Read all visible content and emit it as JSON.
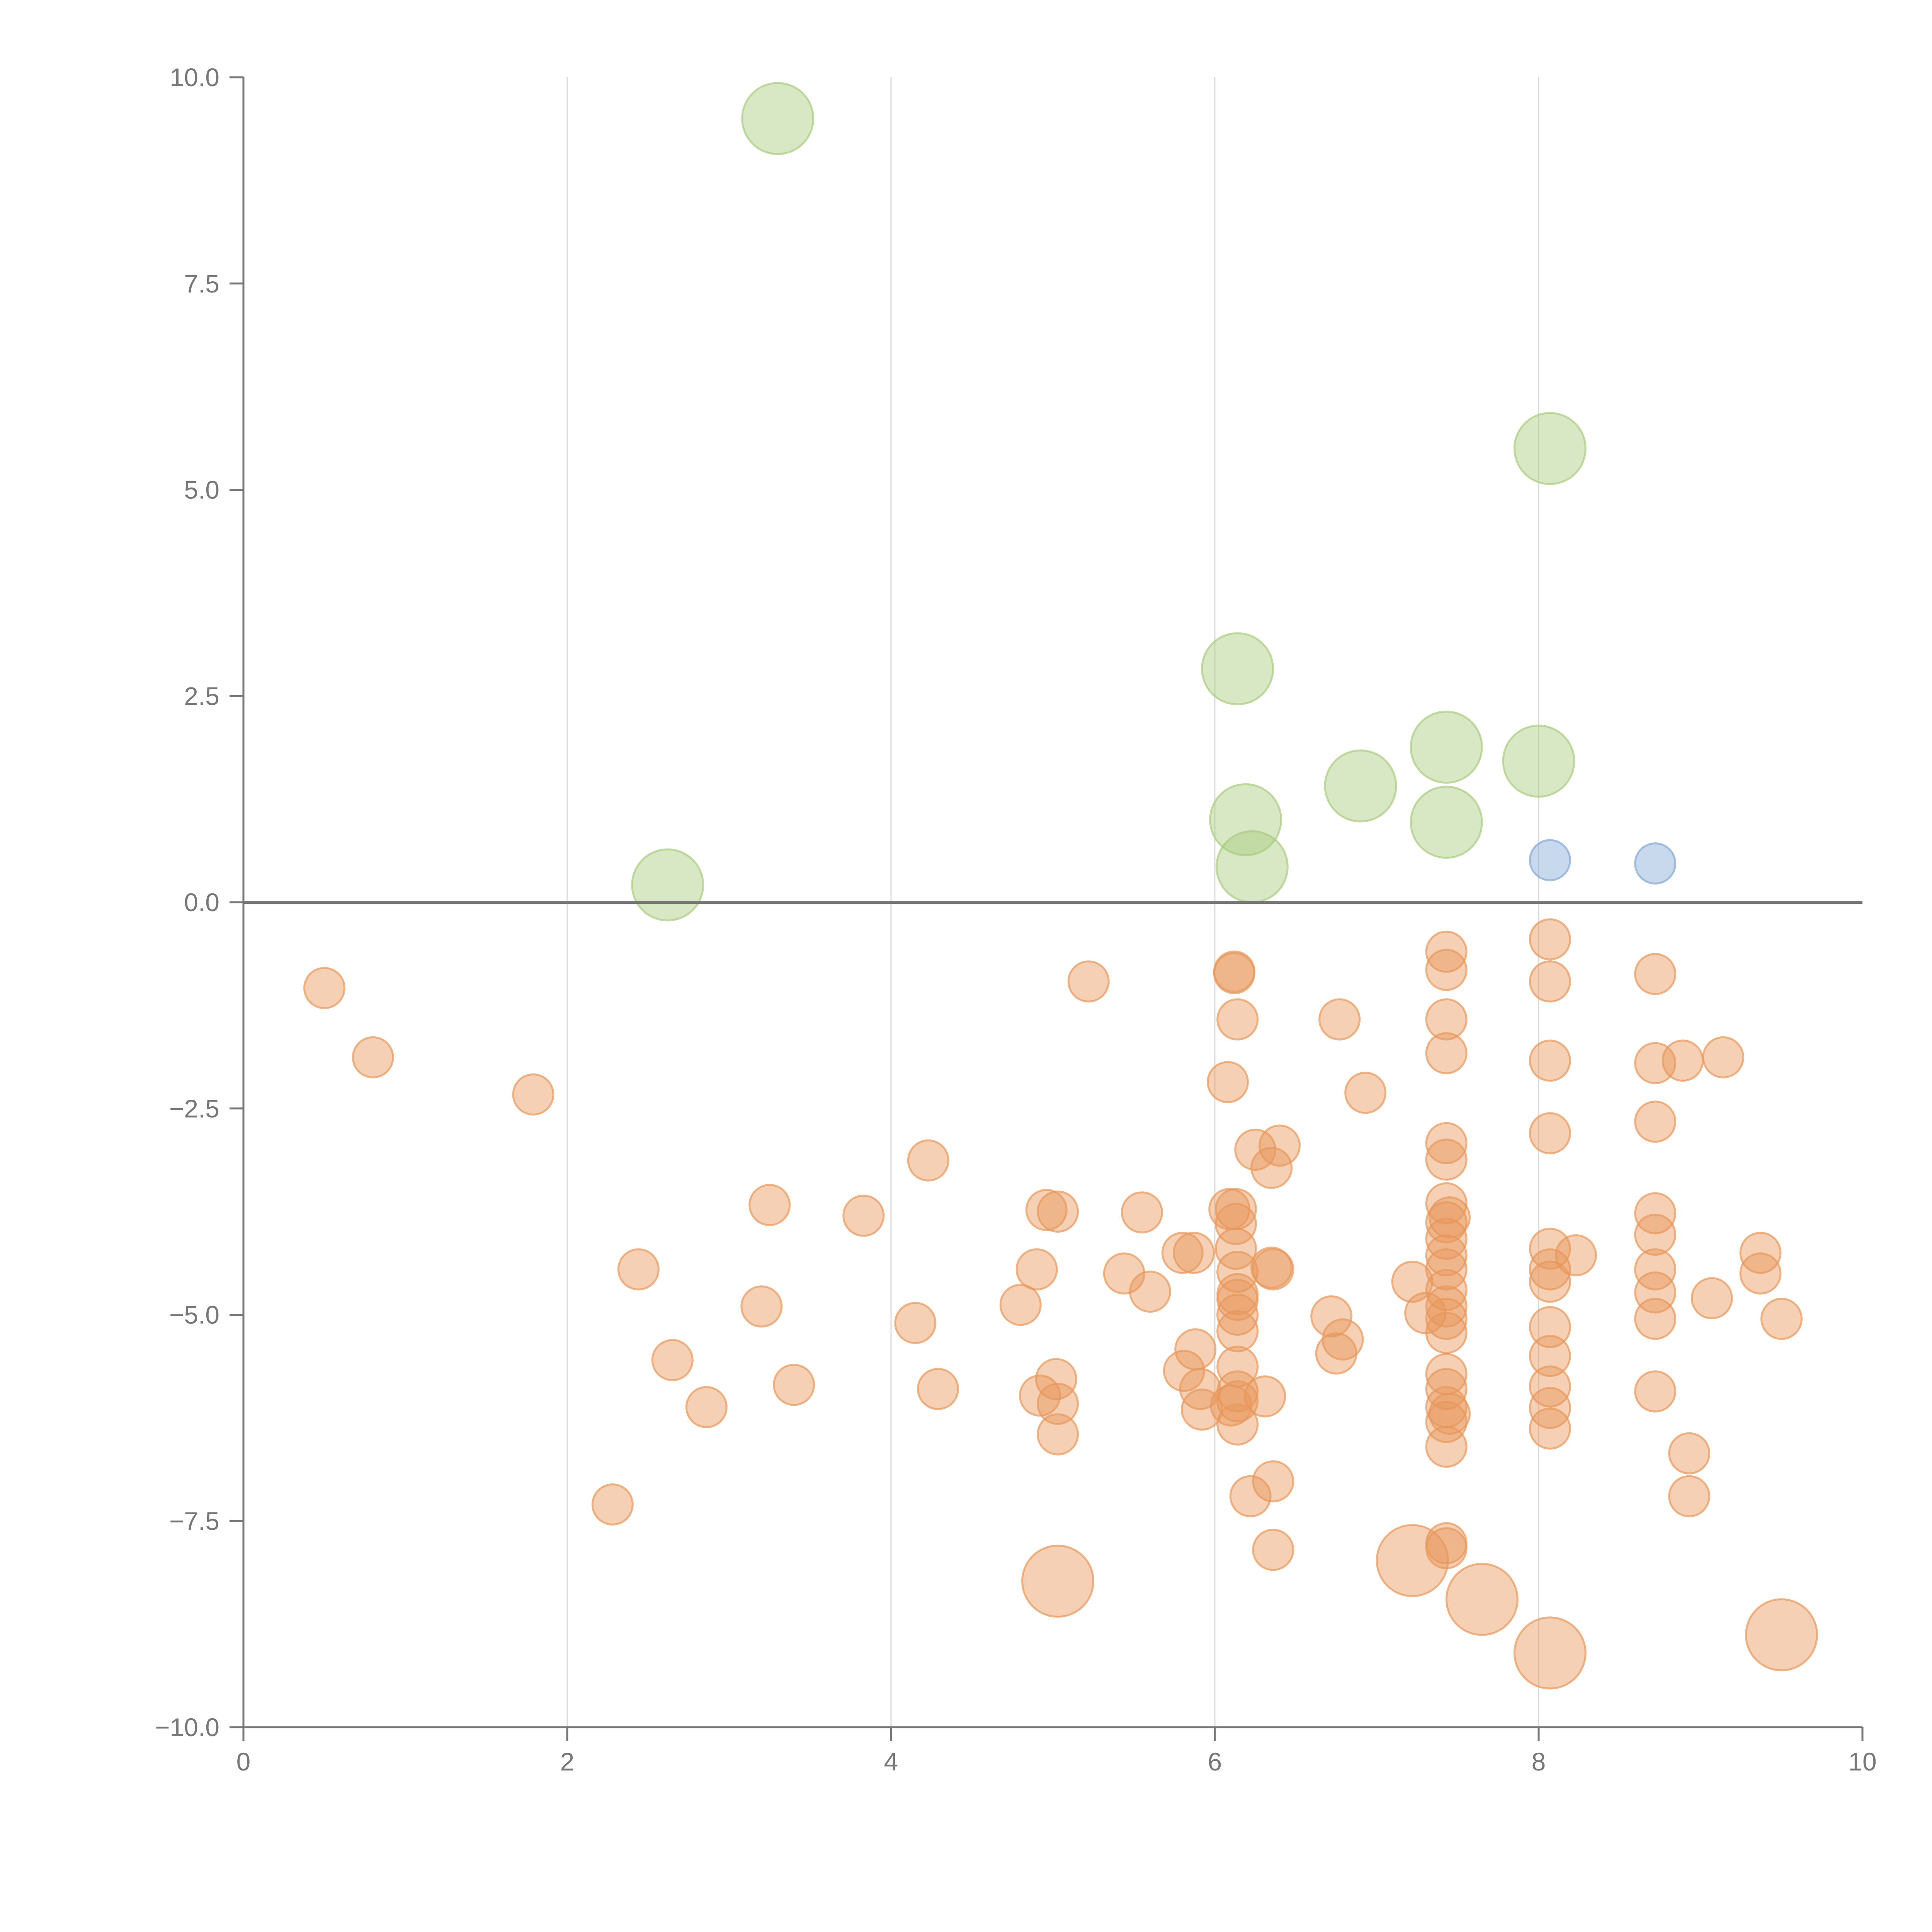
{
  "chart_data": {
    "type": "scatter",
    "title": "",
    "xlabel": "",
    "ylabel": "",
    "xlim": [
      0,
      10
    ],
    "ylim": [
      -10,
      10
    ],
    "grid": true,
    "x_ticks": [
      0,
      2,
      4,
      6,
      8,
      10
    ],
    "x_tick_labels": [
      "0",
      "2",
      "4",
      "6",
      "8",
      "10"
    ],
    "y_ticks": [
      10,
      7.5,
      5,
      2.5,
      0,
      -2.5,
      -5,
      -7.5,
      -10
    ],
    "y_tick_labels": [
      "10.0",
      "7.5",
      "5.0",
      "2.5",
      "0.0",
      "−2.5",
      "−5.0",
      "−7.5",
      "−10.0"
    ],
    "series": [
      {
        "name": "green",
        "color": "#a9cc7f",
        "size": "large",
        "points": [
          [
            3.3,
            9.5
          ],
          [
            8.07,
            5.5
          ],
          [
            6.14,
            2.83
          ],
          [
            7.43,
            1.88
          ],
          [
            8.0,
            1.71
          ],
          [
            6.9,
            1.41
          ],
          [
            6.19,
            1.0
          ],
          [
            7.43,
            0.97
          ],
          [
            6.23,
            0.43
          ],
          [
            2.62,
            0.21
          ]
        ]
      },
      {
        "name": "blue",
        "color": "#86a8d6",
        "size": "small",
        "points": [
          [
            8.07,
            0.51
          ],
          [
            8.72,
            0.47
          ]
        ]
      },
      {
        "name": "orange",
        "color": "#e8975a",
        "size": "small",
        "points": [
          [
            0.5,
            -1.04
          ],
          [
            0.8,
            -1.88
          ],
          [
            1.79,
            -2.33
          ],
          [
            2.28,
            -7.3
          ],
          [
            2.44,
            -4.45
          ],
          [
            2.65,
            -5.55
          ],
          [
            2.86,
            -6.12
          ],
          [
            3.2,
            -4.9
          ],
          [
            3.25,
            -3.67
          ],
          [
            3.4,
            -5.85
          ],
          [
            3.83,
            -3.8
          ],
          [
            4.15,
            -5.1
          ],
          [
            4.23,
            -3.13
          ],
          [
            4.29,
            -5.9
          ],
          [
            4.8,
            -4.88
          ],
          [
            4.9,
            -4.45
          ],
          [
            4.92,
            -5.98
          ],
          [
            4.96,
            -3.73
          ],
          [
            5.02,
            -5.78
          ],
          [
            5.03,
            -3.75
          ],
          [
            5.03,
            -6.08
          ],
          [
            5.03,
            -6.45
          ],
          [
            5.22,
            -0.96
          ],
          [
            5.44,
            -4.5
          ],
          [
            5.55,
            -3.76
          ],
          [
            5.6,
            -4.72
          ],
          [
            5.8,
            -4.25
          ],
          [
            5.81,
            -5.68
          ],
          [
            5.87,
            -4.25
          ],
          [
            5.88,
            -5.42
          ],
          [
            5.91,
            -5.9
          ],
          [
            5.92,
            -6.15
          ],
          [
            6.08,
            -2.18
          ],
          [
            6.09,
            -3.72
          ],
          [
            6.1,
            -6.1
          ],
          [
            6.12,
            -0.84
          ],
          [
            6.12,
            -0.86
          ],
          [
            6.13,
            -3.72
          ],
          [
            6.13,
            -3.9
          ],
          [
            6.13,
            -4.2
          ],
          [
            6.14,
            -1.42
          ],
          [
            6.14,
            -4.48
          ],
          [
            6.14,
            -4.75
          ],
          [
            6.14,
            -4.82
          ],
          [
            6.14,
            -5.0
          ],
          [
            6.14,
            -5.2
          ],
          [
            6.14,
            -5.63
          ],
          [
            6.14,
            -5.93
          ],
          [
            6.14,
            -6.05
          ],
          [
            6.14,
            -6.33
          ],
          [
            6.22,
            -7.2
          ],
          [
            6.25,
            -3.0
          ],
          [
            6.31,
            -5.99
          ],
          [
            6.35,
            -3.22
          ],
          [
            6.35,
            -4.43
          ],
          [
            6.36,
            -4.45
          ],
          [
            6.36,
            -7.02
          ],
          [
            6.36,
            -7.85
          ],
          [
            6.4,
            -2.95
          ],
          [
            6.72,
            -5.02
          ],
          [
            6.75,
            -5.47
          ],
          [
            6.77,
            -1.42
          ],
          [
            6.79,
            -5.3
          ],
          [
            6.93,
            -2.31
          ],
          [
            7.22,
            -4.6
          ],
          [
            7.22,
            -7.98
          ],
          [
            7.3,
            -4.98
          ],
          [
            7.43,
            -0.6
          ],
          [
            7.43,
            -0.82
          ],
          [
            7.43,
            -1.42
          ],
          [
            7.43,
            -1.83
          ],
          [
            7.43,
            -2.92
          ],
          [
            7.43,
            -3.12
          ],
          [
            7.43,
            -3.65
          ],
          [
            7.43,
            -3.88
          ],
          [
            7.43,
            -4.08
          ],
          [
            7.43,
            -4.28
          ],
          [
            7.43,
            -4.45
          ],
          [
            7.43,
            -4.7
          ],
          [
            7.43,
            -4.9
          ],
          [
            7.43,
            -5.05
          ],
          [
            7.43,
            -5.22
          ],
          [
            7.43,
            -5.72
          ],
          [
            7.43,
            -5.9
          ],
          [
            7.43,
            -6.12
          ],
          [
            7.43,
            -6.3
          ],
          [
            7.43,
            -6.6
          ],
          [
            7.43,
            -7.77
          ],
          [
            7.43,
            -7.83
          ],
          [
            7.45,
            -3.82
          ],
          [
            7.45,
            -6.2
          ],
          [
            7.65,
            -8.45
          ],
          [
            8.07,
            -0.45
          ],
          [
            8.07,
            -0.96
          ],
          [
            8.07,
            -1.92
          ],
          [
            8.07,
            -2.8
          ],
          [
            8.07,
            -4.2
          ],
          [
            8.07,
            -4.45
          ],
          [
            8.07,
            -4.6
          ],
          [
            8.07,
            -5.15
          ],
          [
            8.07,
            -5.5
          ],
          [
            8.07,
            -5.87
          ],
          [
            8.07,
            -6.13
          ],
          [
            8.07,
            -6.38
          ],
          [
            8.07,
            -9.1
          ],
          [
            8.23,
            -4.28
          ],
          [
            8.72,
            -0.87
          ],
          [
            8.72,
            -1.95
          ],
          [
            8.72,
            -2.66
          ],
          [
            8.72,
            -3.77
          ],
          [
            8.72,
            -4.03
          ],
          [
            8.72,
            -4.45
          ],
          [
            8.72,
            -4.73
          ],
          [
            8.72,
            -5.05
          ],
          [
            8.72,
            -5.93
          ],
          [
            8.89,
            -1.92
          ],
          [
            8.93,
            -6.68
          ],
          [
            8.93,
            -7.2
          ],
          [
            9.07,
            -4.8
          ],
          [
            9.14,
            -1.88
          ],
          [
            9.37,
            -4.25
          ],
          [
            9.37,
            -4.5
          ],
          [
            9.5,
            -5.05
          ],
          [
            9.5,
            -8.88
          ]
        ],
        "large_points": [
          [
            5.03,
            -8.23
          ],
          [
            7.22,
            -7.98
          ],
          [
            7.65,
            -8.45
          ],
          [
            8.07,
            -9.1
          ],
          [
            9.5,
            -8.88
          ]
        ]
      }
    ]
  }
}
